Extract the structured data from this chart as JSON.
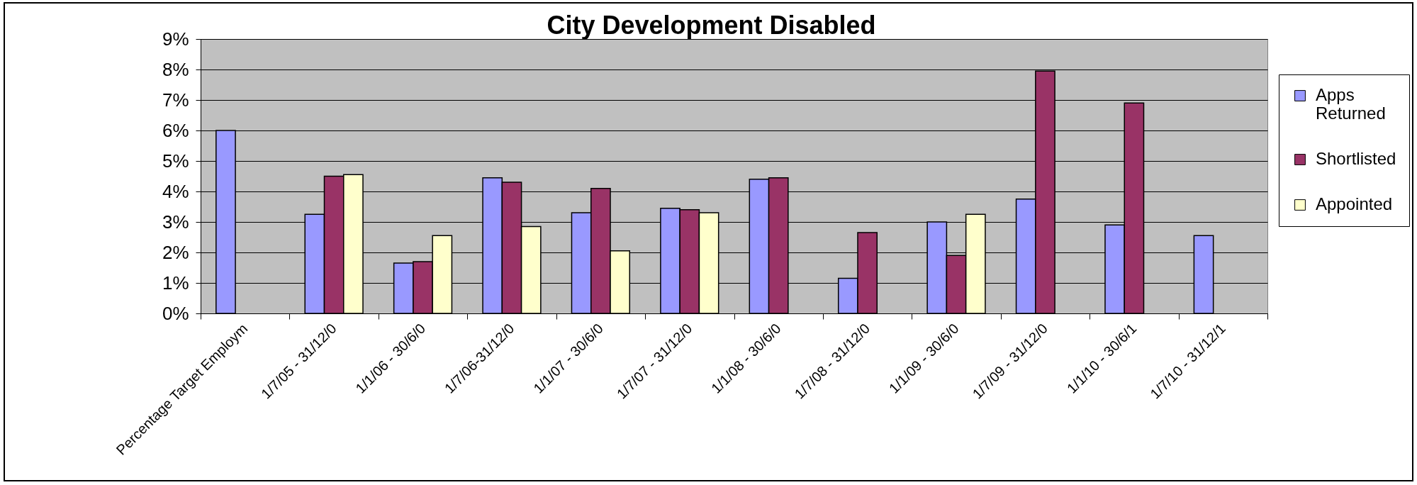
{
  "chart_data": {
    "type": "bar",
    "title": "City Development Disabled",
    "categories": [
      "Percentage Target Employm",
      "1/7/05 - 31/12/0",
      "1/1/06 - 30/6/0",
      "1/7/06-31/12/0",
      "1/1/07 - 30/6/0",
      "1/7/07 - 31/12/0",
      "1/1/08 - 30/6/0",
      "1/7/08 - 31/12/0",
      "1/1/09 - 30/6/0",
      "1/7/09 - 31/12/0",
      "1/1/10 - 30/6/1",
      "1/7/10 - 31/12/1"
    ],
    "series": [
      {
        "name": "Apps Returned",
        "color": "#9999ff",
        "values": [
          6.0,
          3.25,
          1.65,
          4.45,
          3.3,
          3.45,
          4.4,
          1.15,
          3.0,
          3.75,
          2.9,
          2.55
        ]
      },
      {
        "name": "Shortlisted",
        "color": "#993366",
        "values": [
          null,
          4.5,
          1.7,
          4.3,
          4.1,
          3.4,
          4.45,
          2.65,
          1.9,
          7.95,
          6.9,
          null
        ]
      },
      {
        "name": "Appointed",
        "color": "#ffffcc",
        "values": [
          null,
          4.55,
          2.55,
          2.85,
          2.05,
          3.3,
          null,
          null,
          3.25,
          null,
          null,
          null
        ]
      }
    ],
    "ylim": [
      0,
      9
    ],
    "yticks": [
      {
        "value": 0,
        "label": "0%"
      },
      {
        "value": 1,
        "label": "1%"
      },
      {
        "value": 2,
        "label": "2%"
      },
      {
        "value": 3,
        "label": "3%"
      },
      {
        "value": 4,
        "label": "4%"
      },
      {
        "value": 5,
        "label": "5%"
      },
      {
        "value": 6,
        "label": "6%"
      },
      {
        "value": 7,
        "label": "7%"
      },
      {
        "value": 8,
        "label": "8%"
      },
      {
        "value": 9,
        "label": "9%"
      }
    ],
    "grid": "y",
    "legend": "right"
  }
}
